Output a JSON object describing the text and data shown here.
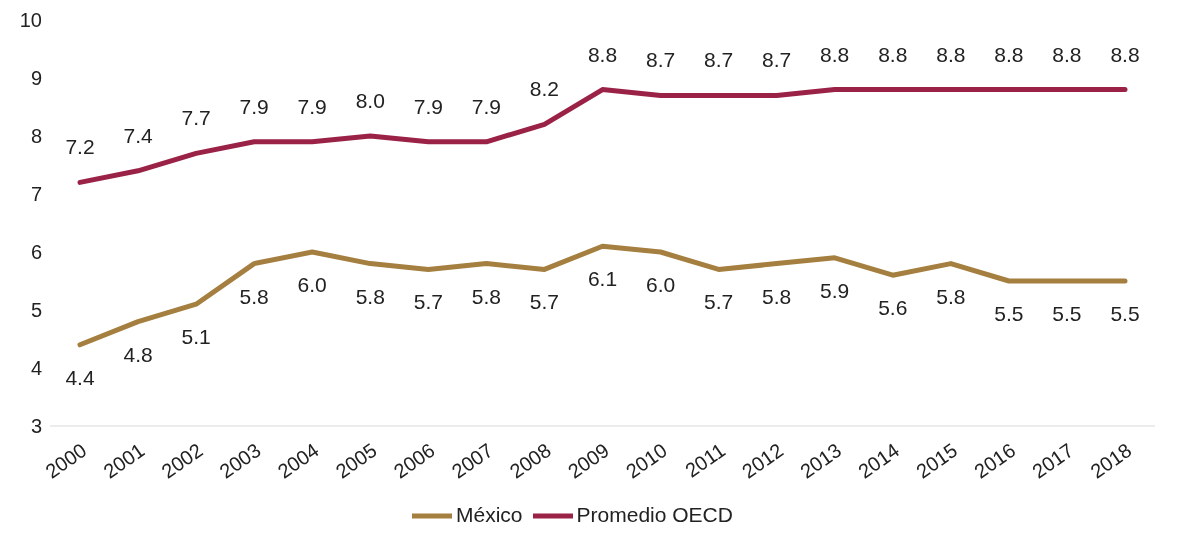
{
  "chart_data": {
    "type": "line",
    "categories": [
      "2000",
      "2001",
      "2002",
      "2003",
      "2004",
      "2005",
      "2006",
      "2007",
      "2008",
      "2009",
      "2010",
      "2011",
      "2012",
      "2013",
      "2014",
      "2015",
      "2016",
      "2017",
      "2018"
    ],
    "series": [
      {
        "name": "Promedio OECD",
        "color": "#9b2247",
        "values": [
          7.2,
          7.4,
          7.7,
          7.9,
          7.9,
          8.0,
          7.9,
          7.9,
          8.2,
          8.8,
          8.7,
          8.7,
          8.7,
          8.8,
          8.8,
          8.8,
          8.8,
          8.8,
          8.8
        ],
        "value_labels": [
          "7.2",
          "7.4",
          "7.7",
          "7.9",
          "7.9",
          "8.0",
          "7.9",
          "7.9",
          "8.2",
          "8.8",
          "8.7",
          "8.7",
          "8.7",
          "8.8",
          "8.8",
          "8.8",
          "8.8",
          "8.8",
          "8.8"
        ]
      },
      {
        "name": "México",
        "color": "#a57f3f",
        "values": [
          4.4,
          4.8,
          5.1,
          5.8,
          6.0,
          5.8,
          5.7,
          5.8,
          5.7,
          6.1,
          6.0,
          5.7,
          5.8,
          5.9,
          5.6,
          5.8,
          5.5,
          5.5,
          5.5
        ],
        "value_labels": [
          "4.4",
          "4.8",
          "5.1",
          "5.8",
          "6.0",
          "5.8",
          "5.7",
          "5.8",
          "5.7",
          "6.1",
          "6.0",
          "5.7",
          "5.8",
          "5.9",
          "5.6",
          "5.8",
          "5.5",
          "5.5",
          "5.5"
        ]
      }
    ],
    "ylim": [
      3,
      10
    ],
    "yticks": [
      3,
      4,
      5,
      6,
      7,
      8,
      9,
      10
    ],
    "grid": false,
    "legend": "bottom",
    "marker": "none",
    "line_style": "solid"
  }
}
